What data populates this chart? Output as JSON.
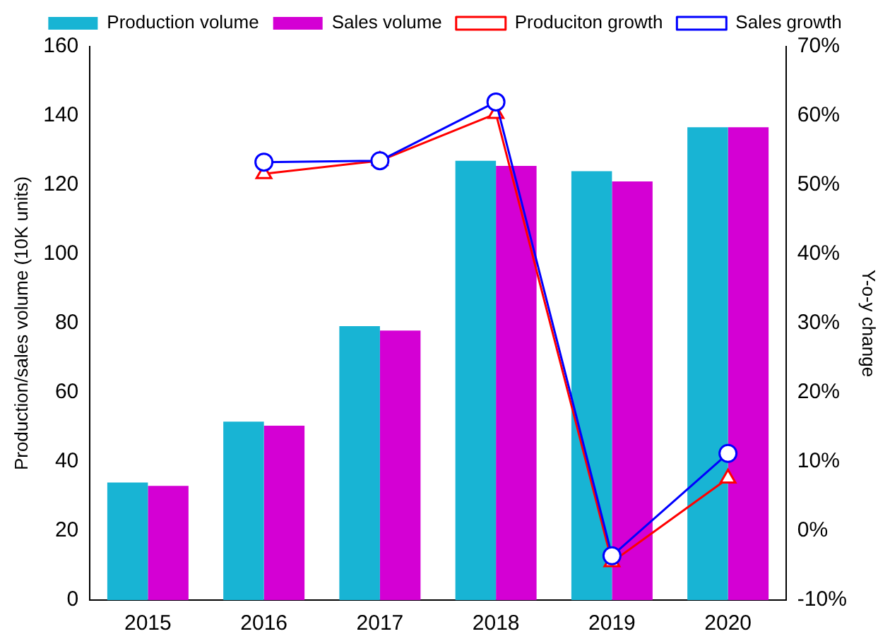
{
  "chart_data": {
    "type": "bar",
    "categories": [
      "2015",
      "2016",
      "2017",
      "2018",
      "2019",
      "2020"
    ],
    "ylabel": "Production/sales volume (10K units)",
    "y2label": "Y-o-y change",
    "ylim": [
      0,
      160
    ],
    "yticks": [
      0,
      20,
      40,
      60,
      80,
      100,
      120,
      140,
      160
    ],
    "y2lim": [
      -10,
      70
    ],
    "y2ticks": [
      {
        "value": -10,
        "label": "-10%"
      },
      {
        "value": 0,
        "label": "0%"
      },
      {
        "value": 10,
        "label": "10%"
      },
      {
        "value": 20,
        "label": "20%"
      },
      {
        "value": 30,
        "label": "30%"
      },
      {
        "value": 40,
        "label": "40%"
      },
      {
        "value": 50,
        "label": "50%"
      },
      {
        "value": 60,
        "label": "60%"
      },
      {
        "value": 70,
        "label": "70%"
      }
    ],
    "grid": false,
    "legend": "top",
    "series": [
      {
        "name": "Production volume",
        "color": "#18b4d4",
        "values": [
          34,
          51.6,
          79.2,
          127,
          124,
          136.7
        ]
      },
      {
        "name": "Sales volume",
        "color": "#d400d4",
        "values": [
          33,
          50.4,
          77.9,
          125.5,
          121,
          136.7
        ]
      },
      {
        "name": "Produciton growth",
        "type": "line",
        "axis": "y2",
        "color": "#ff0000",
        "marker": "triangle",
        "values": [
          null,
          51.6,
          53.5,
          60.3,
          -4.5,
          7.6
        ]
      },
      {
        "name": "Sales growth",
        "type": "line",
        "axis": "y2",
        "color": "#0000ff",
        "marker": "circle",
        "values": [
          null,
          53.3,
          53.5,
          62,
          -3.6,
          11.2
        ]
      }
    ]
  }
}
